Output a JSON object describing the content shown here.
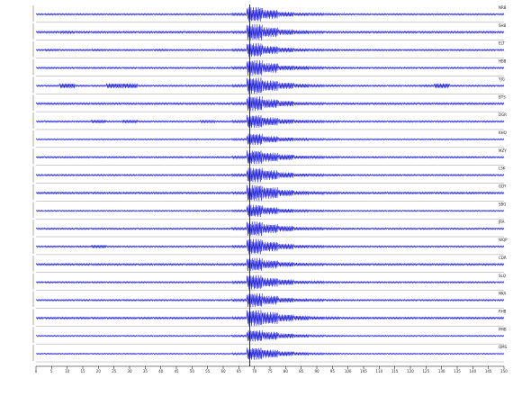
{
  "chart_data": {
    "type": "seismogram",
    "xlim": [
      0,
      150
    ],
    "xticks": [
      0,
      5,
      10,
      15,
      20,
      25,
      30,
      35,
      40,
      45,
      50,
      55,
      60,
      65,
      70,
      75,
      80,
      85,
      90,
      95,
      100,
      105,
      110,
      115,
      120,
      125,
      130,
      135,
      140,
      145,
      150
    ],
    "x": [
      0,
      5,
      10,
      15,
      20,
      25,
      30,
      35,
      40,
      45,
      50,
      55,
      60,
      65,
      70,
      75,
      80,
      85,
      90,
      95,
      100,
      105,
      110,
      115,
      120,
      125,
      130,
      135,
      140,
      145,
      150
    ],
    "vline": 68.5,
    "series": [
      {
        "name": "NRB",
        "color": "#1f1fd6",
        "values": [
          0.1,
          0.1,
          0.1,
          0.1,
          0.1,
          0.1,
          0.1,
          0.1,
          0.1,
          0.1,
          0.1,
          0.1,
          0.1,
          0.15,
          0.9,
          0.55,
          0.3,
          0.2,
          0.15,
          0.12,
          0.1,
          0.1,
          0.1,
          0.1,
          0.1,
          0.1,
          0.1,
          0.1,
          0.1,
          0.1,
          0.1
        ]
      },
      {
        "name": "SHB",
        "color": "#1f1fd6",
        "values": [
          0.12,
          0.12,
          0.15,
          0.12,
          0.12,
          0.12,
          0.12,
          0.12,
          0.12,
          0.12,
          0.12,
          0.12,
          0.12,
          0.15,
          1.0,
          0.6,
          0.35,
          0.25,
          0.15,
          0.12,
          0.12,
          0.12,
          0.12,
          0.12,
          0.12,
          0.12,
          0.12,
          0.12,
          0.12,
          0.12,
          0.12
        ]
      },
      {
        "name": "ELT",
        "color": "#1f1fd6",
        "values": [
          0.1,
          0.12,
          0.1,
          0.1,
          0.12,
          0.1,
          0.1,
          0.1,
          0.12,
          0.1,
          0.1,
          0.1,
          0.1,
          0.15,
          0.85,
          0.5,
          0.3,
          0.2,
          0.14,
          0.12,
          0.1,
          0.1,
          0.1,
          0.1,
          0.1,
          0.1,
          0.1,
          0.1,
          0.1,
          0.1,
          0.1
        ]
      },
      {
        "name": "HBB",
        "color": "#1f1fd6",
        "values": [
          0.1,
          0.1,
          0.1,
          0.1,
          0.1,
          0.1,
          0.1,
          0.1,
          0.1,
          0.1,
          0.1,
          0.1,
          0.1,
          0.15,
          0.95,
          0.6,
          0.3,
          0.25,
          0.15,
          0.12,
          0.1,
          0.1,
          0.1,
          0.1,
          0.1,
          0.1,
          0.1,
          0.1,
          0.1,
          0.1,
          0.1
        ]
      },
      {
        "name": "YJG",
        "color": "#1f1fd6",
        "values": [
          0.1,
          0.1,
          0.3,
          0.1,
          0.1,
          0.3,
          0.3,
          0.1,
          0.1,
          0.1,
          0.1,
          0.1,
          0.1,
          0.15,
          1.0,
          0.65,
          0.4,
          0.25,
          0.15,
          0.12,
          0.1,
          0.1,
          0.1,
          0.1,
          0.1,
          0.12,
          0.3,
          0.1,
          0.1,
          0.1,
          0.1
        ]
      },
      {
        "name": "BTS",
        "color": "#1f1fd6",
        "values": [
          0.12,
          0.12,
          0.12,
          0.12,
          0.12,
          0.12,
          0.12,
          0.12,
          0.12,
          0.12,
          0.12,
          0.12,
          0.12,
          0.15,
          0.9,
          0.55,
          0.35,
          0.2,
          0.15,
          0.12,
          0.12,
          0.12,
          0.12,
          0.12,
          0.12,
          0.12,
          0.12,
          0.12,
          0.12,
          0.12,
          0.12
        ]
      },
      {
        "name": "DGR",
        "color": "#1f1fd6",
        "values": [
          0.1,
          0.1,
          0.1,
          0.1,
          0.2,
          0.1,
          0.2,
          0.1,
          0.1,
          0.1,
          0.1,
          0.15,
          0.1,
          0.15,
          0.8,
          0.5,
          0.3,
          0.2,
          0.15,
          0.12,
          0.1,
          0.1,
          0.1,
          0.1,
          0.1,
          0.1,
          0.1,
          0.1,
          0.1,
          0.1,
          0.1
        ]
      },
      {
        "name": "KHQ",
        "color": "#1f1fd6",
        "values": [
          0.08,
          0.08,
          0.08,
          0.08,
          0.08,
          0.08,
          0.08,
          0.08,
          0.08,
          0.08,
          0.08,
          0.08,
          0.08,
          0.12,
          0.7,
          0.4,
          0.25,
          0.15,
          0.12,
          0.1,
          0.08,
          0.08,
          0.08,
          0.08,
          0.08,
          0.08,
          0.08,
          0.08,
          0.08,
          0.08,
          0.08
        ]
      },
      {
        "name": "MZY",
        "color": "#1f1fd6",
        "values": [
          0.1,
          0.1,
          0.1,
          0.1,
          0.1,
          0.1,
          0.1,
          0.1,
          0.1,
          0.1,
          0.1,
          0.1,
          0.1,
          0.15,
          0.85,
          0.55,
          0.35,
          0.2,
          0.15,
          0.12,
          0.1,
          0.1,
          0.1,
          0.1,
          0.1,
          0.1,
          0.1,
          0.1,
          0.1,
          0.1,
          0.1
        ]
      },
      {
        "name": "LSK",
        "color": "#1f1fd6",
        "values": [
          0.1,
          0.1,
          0.1,
          0.1,
          0.1,
          0.1,
          0.1,
          0.1,
          0.1,
          0.1,
          0.1,
          0.1,
          0.1,
          0.15,
          0.9,
          0.6,
          0.35,
          0.2,
          0.15,
          0.12,
          0.1,
          0.1,
          0.1,
          0.1,
          0.1,
          0.1,
          0.1,
          0.1,
          0.1,
          0.1,
          0.1
        ]
      },
      {
        "name": "GDY",
        "color": "#1f1fd6",
        "values": [
          0.12,
          0.12,
          0.12,
          0.12,
          0.12,
          0.12,
          0.12,
          0.12,
          0.12,
          0.12,
          0.12,
          0.12,
          0.12,
          0.15,
          1.0,
          0.7,
          0.4,
          0.25,
          0.18,
          0.14,
          0.12,
          0.12,
          0.12,
          0.12,
          0.12,
          0.12,
          0.12,
          0.12,
          0.12,
          0.12,
          0.12
        ]
      },
      {
        "name": "SBG",
        "color": "#1f1fd6",
        "values": [
          0.08,
          0.08,
          0.08,
          0.08,
          0.08,
          0.08,
          0.08,
          0.08,
          0.08,
          0.08,
          0.08,
          0.08,
          0.08,
          0.12,
          0.75,
          0.45,
          0.25,
          0.15,
          0.12,
          0.1,
          0.08,
          0.08,
          0.08,
          0.08,
          0.08,
          0.08,
          0.08,
          0.08,
          0.08,
          0.08,
          0.08
        ]
      },
      {
        "name": "JRA",
        "color": "#1f1fd6",
        "values": [
          0.1,
          0.1,
          0.1,
          0.1,
          0.1,
          0.1,
          0.1,
          0.1,
          0.1,
          0.1,
          0.1,
          0.1,
          0.1,
          0.15,
          0.9,
          0.55,
          0.35,
          0.2,
          0.15,
          0.12,
          0.1,
          0.1,
          0.1,
          0.1,
          0.1,
          0.1,
          0.1,
          0.1,
          0.1,
          0.1,
          0.1
        ]
      },
      {
        "name": "WQP",
        "color": "#1f1fd6",
        "values": [
          0.1,
          0.1,
          0.1,
          0.1,
          0.2,
          0.1,
          0.1,
          0.1,
          0.1,
          0.1,
          0.1,
          0.1,
          0.1,
          0.15,
          0.95,
          0.6,
          0.35,
          0.2,
          0.15,
          0.12,
          0.1,
          0.1,
          0.1,
          0.1,
          0.1,
          0.1,
          0.1,
          0.1,
          0.1,
          0.1,
          0.1
        ]
      },
      {
        "name": "CDR",
        "color": "#1f1fd6",
        "values": [
          0.12,
          0.12,
          0.12,
          0.12,
          0.12,
          0.12,
          0.12,
          0.12,
          0.12,
          0.12,
          0.12,
          0.12,
          0.12,
          0.15,
          0.8,
          0.5,
          0.3,
          0.2,
          0.15,
          0.12,
          0.12,
          0.12,
          0.12,
          0.12,
          0.12,
          0.12,
          0.12,
          0.12,
          0.12,
          0.12,
          0.12
        ]
      },
      {
        "name": "SLQ",
        "color": "#1f1fd6",
        "values": [
          0.1,
          0.1,
          0.1,
          0.1,
          0.1,
          0.1,
          0.1,
          0.1,
          0.1,
          0.1,
          0.1,
          0.1,
          0.1,
          0.15,
          0.9,
          0.55,
          0.35,
          0.2,
          0.15,
          0.12,
          0.1,
          0.1,
          0.1,
          0.1,
          0.1,
          0.1,
          0.1,
          0.1,
          0.1,
          0.1,
          0.1
        ]
      },
      {
        "name": "NKA",
        "color": "#1f1fd6",
        "values": [
          0.1,
          0.1,
          0.1,
          0.1,
          0.1,
          0.1,
          0.1,
          0.1,
          0.1,
          0.1,
          0.1,
          0.1,
          0.1,
          0.15,
          0.85,
          0.55,
          0.3,
          0.2,
          0.15,
          0.12,
          0.1,
          0.1,
          0.1,
          0.1,
          0.1,
          0.1,
          0.1,
          0.1,
          0.1,
          0.1,
          0.1
        ]
      },
      {
        "name": "RHB",
        "color": "#1f1fd6",
        "values": [
          0.12,
          0.12,
          0.12,
          0.12,
          0.12,
          0.12,
          0.12,
          0.12,
          0.12,
          0.12,
          0.12,
          0.12,
          0.12,
          0.15,
          1.0,
          0.75,
          0.45,
          0.3,
          0.2,
          0.15,
          0.12,
          0.12,
          0.12,
          0.12,
          0.12,
          0.12,
          0.12,
          0.12,
          0.12,
          0.12,
          0.12
        ]
      },
      {
        "name": "PMB",
        "color": "#1f1fd6",
        "values": [
          0.08,
          0.08,
          0.08,
          0.08,
          0.08,
          0.08,
          0.08,
          0.08,
          0.08,
          0.08,
          0.08,
          0.08,
          0.08,
          0.12,
          0.7,
          0.5,
          0.3,
          0.2,
          0.12,
          0.1,
          0.08,
          0.08,
          0.08,
          0.08,
          0.08,
          0.08,
          0.08,
          0.08,
          0.08,
          0.08,
          0.08
        ]
      },
      {
        "name": "QMS",
        "color": "#1f1fd6",
        "values": [
          0.08,
          0.08,
          0.08,
          0.08,
          0.08,
          0.08,
          0.08,
          0.08,
          0.08,
          0.08,
          0.08,
          0.08,
          0.08,
          0.12,
          0.75,
          0.5,
          0.3,
          0.2,
          0.12,
          0.1,
          0.08,
          0.08,
          0.08,
          0.08,
          0.08,
          0.08,
          0.08,
          0.08,
          0.08,
          0.08,
          0.08
        ]
      }
    ]
  }
}
